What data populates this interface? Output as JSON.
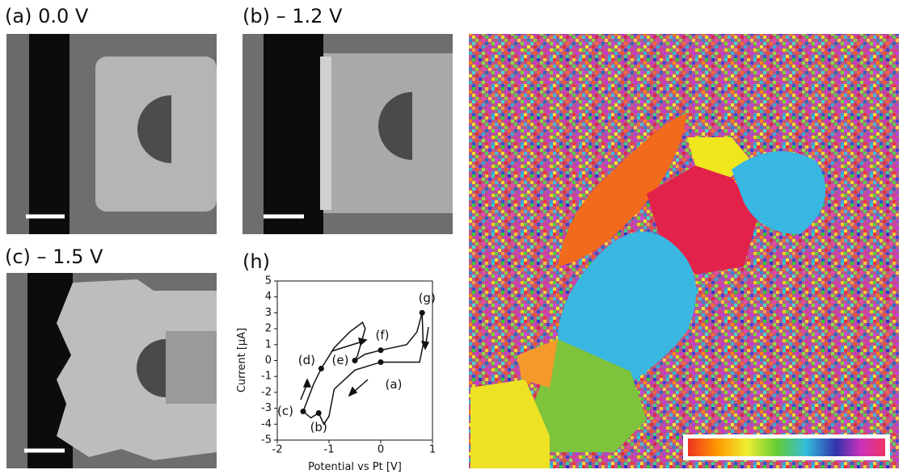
{
  "panels": [
    {
      "label": "(a) 0.0 V"
    },
    {
      "label": "(b) – 1.2 V"
    },
    {
      "label": "(c) – 1.5 V"
    },
    {
      "label": "(h)"
    }
  ],
  "chart_data": {
    "type": "line",
    "xlabel": "Potential vs Pt [V]",
    "ylabel": "Current [μA]",
    "x": [
      0.8,
      0.82,
      0.75,
      0.4,
      0.0,
      -0.5,
      -0.9,
      -1.0,
      -1.1,
      -1.2,
      -1.35,
      -1.5,
      -1.3,
      -1.15,
      -0.9,
      -0.6,
      -0.35,
      -0.3,
      -0.45,
      -0.5,
      -0.3,
      0.0,
      0.5,
      0.7,
      0.8
    ],
    "series": [
      {
        "color": "#111111",
        "values": [
          3.0,
          1.0,
          -0.1,
          -0.1,
          -0.1,
          -0.6,
          -1.8,
          -3.5,
          -4.0,
          -3.3,
          -3.6,
          -3.2,
          -1.5,
          -0.5,
          0.8,
          1.8,
          2.4,
          2.0,
          0.3,
          0.0,
          0.4,
          0.65,
          1.0,
          1.8,
          3.0
        ]
      }
    ],
    "xlim": [
      -2,
      1
    ],
    "ylim": [
      -5,
      5
    ],
    "xticks": [
      -2,
      -1,
      0,
      1
    ],
    "yticks": [
      -5,
      -4,
      -3,
      -2,
      -1,
      0,
      1,
      2,
      3,
      4,
      5
    ],
    "annotations": [
      {
        "text": "(a)",
        "x": 0.0,
        "y": -0.1
      },
      {
        "text": "(b)",
        "x": -1.2,
        "y": -3.3
      },
      {
        "text": "(c)",
        "x": -1.5,
        "y": -3.2
      },
      {
        "text": "(d)",
        "x": -1.15,
        "y": -0.5
      },
      {
        "text": "(e)",
        "x": -0.5,
        "y": 0.0
      },
      {
        "text": "(f)",
        "x": 0.0,
        "y": 0.65
      },
      {
        "text": "(g)",
        "x": 0.8,
        "y": 3.0
      }
    ]
  }
}
